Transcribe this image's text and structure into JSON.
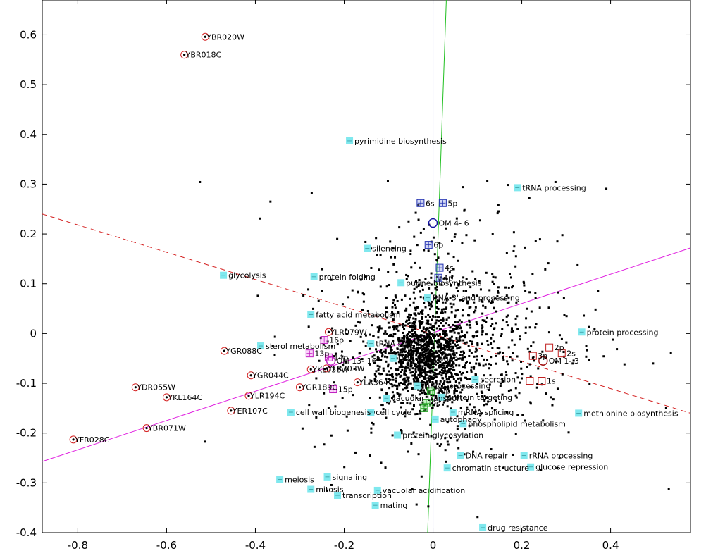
{
  "chart_data": {
    "type": "scatter",
    "title": "",
    "xlabel": "",
    "ylabel": "",
    "xlim": [
      -0.88,
      0.58
    ],
    "ylim": [
      -0.4,
      0.67
    ],
    "grid": false,
    "x_ticks": [
      -0.8,
      -0.6,
      -0.4,
      -0.2,
      0,
      0.2,
      0.4
    ],
    "x_tick_labels": [
      "-0.8",
      "-0.6",
      "-0.4",
      "-0.2",
      "0",
      "0.2",
      "0.4"
    ],
    "y_ticks": [
      0.6,
      0.5,
      0.4,
      0.3,
      0.2,
      0.1,
      0,
      -0.1,
      -0.2,
      -0.3,
      -0.4
    ],
    "y_tick_labels": [
      "0.6",
      "0.5",
      "0.4",
      "0.3",
      "0.2",
      "0.1",
      "0",
      "-0.1",
      "-0.2",
      "-0.3",
      "-0.4"
    ],
    "lines": [
      {
        "kind": "magenta-solid",
        "color": "#e020e0",
        "dash": false,
        "points": [
          [
            -0.88,
            -0.257
          ],
          [
            0.58,
            0.172
          ]
        ]
      },
      {
        "kind": "red-dashed",
        "color": "#d42020",
        "dash": true,
        "points": [
          [
            -0.88,
            0.24
          ],
          [
            0.58,
            -0.16
          ]
        ]
      },
      {
        "kind": "blue-vertical",
        "color": "#1010c0",
        "dash": false,
        "points": [
          [
            0.0,
            -0.4
          ],
          [
            0.0,
            0.67
          ]
        ]
      },
      {
        "kind": "green",
        "color": "#20c020",
        "dash": false,
        "points": [
          [
            0.03,
            0.67
          ],
          [
            -0.012,
            -0.4
          ]
        ]
      }
    ],
    "cyan_annotations": [
      {
        "label": "pyrimidine biosynthesis",
        "x": -0.188,
        "y": 0.387
      },
      {
        "label": "tRNA processing",
        "x": 0.19,
        "y": 0.293
      },
      {
        "label": "silencing",
        "x": -0.148,
        "y": 0.171
      },
      {
        "label": "glycolysis",
        "x": -0.472,
        "y": 0.117
      },
      {
        "label": "protein folding",
        "x": -0.268,
        "y": 0.114
      },
      {
        "label": "purine biosynthesis",
        "x": -0.072,
        "y": 0.102
      },
      {
        "label": "RNA 3' end processing",
        "x": -0.012,
        "y": 0.072
      },
      {
        "label": "fatty acid metabolism",
        "x": -0.275,
        "y": 0.038
      },
      {
        "label": "protein processing",
        "x": 0.335,
        "y": 0.003
      },
      {
        "label": "sterol metabolism",
        "x": -0.388,
        "y": -0.025
      },
      {
        "label": "tRNA splicing",
        "x": -0.14,
        "y": -0.02
      },
      {
        "label": "DNA replication",
        "x": -0.09,
        "y": -0.05
      },
      {
        "label": "secretion",
        "x": 0.095,
        "y": -0.092
      },
      {
        "label": "mRNA processing",
        "x": -0.035,
        "y": -0.105
      },
      {
        "label": "protein targeting",
        "x": 0.02,
        "y": -0.128
      },
      {
        "label": "vacuolar transport",
        "x": -0.105,
        "y": -0.13
      },
      {
        "label": "cell wall biogenesis",
        "x": -0.32,
        "y": -0.158
      },
      {
        "label": "cell cycle",
        "x": -0.14,
        "y": -0.158
      },
      {
        "label": "mRNA splicing",
        "x": 0.045,
        "y": -0.158
      },
      {
        "label": "methionine biosynthesis",
        "x": 0.328,
        "y": -0.16
      },
      {
        "label": "autophagy",
        "x": 0.005,
        "y": -0.172
      },
      {
        "label": "phospholipid metabolism",
        "x": 0.068,
        "y": -0.181
      },
      {
        "label": "protein glycosylation",
        "x": -0.08,
        "y": -0.204
      },
      {
        "label": "DNA repair",
        "x": 0.062,
        "y": -0.245
      },
      {
        "label": "rRNA processing",
        "x": 0.205,
        "y": -0.245
      },
      {
        "label": "chromatin structure",
        "x": 0.032,
        "y": -0.27
      },
      {
        "label": "glucose repression",
        "x": 0.22,
        "y": -0.268
      },
      {
        "label": "meiosis",
        "x": -0.345,
        "y": -0.293
      },
      {
        "label": "signaling",
        "x": -0.238,
        "y": -0.288
      },
      {
        "label": "mitosis",
        "x": -0.275,
        "y": -0.313
      },
      {
        "label": "vacuolar acidification",
        "x": -0.125,
        "y": -0.315
      },
      {
        "label": "transcription",
        "x": -0.215,
        "y": -0.325
      },
      {
        "label": "mating",
        "x": -0.13,
        "y": -0.345
      },
      {
        "label": "drug resistance",
        "x": 0.112,
        "y": -0.39
      }
    ],
    "gene_annotations": [
      {
        "label": "YBR020W",
        "x": -0.513,
        "y": 0.596
      },
      {
        "label": "YBR018C",
        "x": -0.56,
        "y": 0.56
      },
      {
        "label": "YLR079W",
        "x": -0.235,
        "y": 0.003
      },
      {
        "label": "YGR088C",
        "x": -0.47,
        "y": -0.035
      },
      {
        "label": "YGR044C",
        "x": -0.41,
        "y": -0.084
      },
      {
        "label": "YKL038W",
        "x": -0.275,
        "y": -0.072
      },
      {
        "label": "YLR303W",
        "x": -0.24,
        "y": -0.07
      },
      {
        "label": "YLR364C",
        "x": -0.17,
        "y": -0.098
      },
      {
        "label": "YGR189C",
        "x": -0.3,
        "y": -0.108
      },
      {
        "label": "YDR055W",
        "x": -0.67,
        "y": -0.108
      },
      {
        "label": "YKL164C",
        "x": -0.6,
        "y": -0.128
      },
      {
        "label": "YLR194C",
        "x": -0.415,
        "y": -0.125
      },
      {
        "label": "YER107C",
        "x": -0.455,
        "y": -0.155
      },
      {
        "label": "YBR071W",
        "x": -0.645,
        "y": -0.19
      },
      {
        "label": "YFR028C",
        "x": -0.81,
        "y": -0.213
      }
    ],
    "blue_markers": [
      {
        "label": "6s",
        "x": -0.028,
        "y": 0.262
      },
      {
        "label": "5p",
        "x": 0.022,
        "y": 0.262
      },
      {
        "label": "6p",
        "x": -0.01,
        "y": 0.178
      },
      {
        "label": "4s",
        "x": 0.015,
        "y": 0.132
      },
      {
        "label": "4p",
        "x": 0.012,
        "y": 0.112
      }
    ],
    "blue_circle": {
      "label": "OM  4- 6",
      "x": 0.0,
      "y": 0.222
    },
    "magenta_markers": [
      {
        "label": "16p",
        "x": -0.245,
        "y": -0.013
      },
      {
        "label": "13p",
        "x": -0.278,
        "y": -0.04
      },
      {
        "label": "14p",
        "x": -0.235,
        "y": -0.048
      },
      {
        "label": "15p",
        "x": -0.225,
        "y": -0.112
      }
    ],
    "magenta_circle": {
      "label": "OM 13- 16",
      "x": -0.23,
      "y": -0.055
    },
    "red_markers": [
      {
        "label": "2p",
        "x": 0.262,
        "y": -0.028
      },
      {
        "label": "3p",
        "x": 0.225,
        "y": -0.045
      },
      {
        "label": "2s",
        "x": 0.29,
        "y": -0.04
      },
      {
        "label": "1s",
        "x": 0.245,
        "y": -0.095
      },
      {
        "label": "",
        "x": 0.218,
        "y": -0.095
      }
    ],
    "red_circle": {
      "label": "OM  1- 3",
      "x": 0.248,
      "y": -0.055
    },
    "green_markers": [
      {
        "label": "10p",
        "x": -0.005,
        "y": -0.115
      },
      {
        "label": "9s",
        "x": -0.015,
        "y": -0.14
      },
      {
        "label": "",
        "x": -0.02,
        "y": -0.15
      }
    ]
  }
}
